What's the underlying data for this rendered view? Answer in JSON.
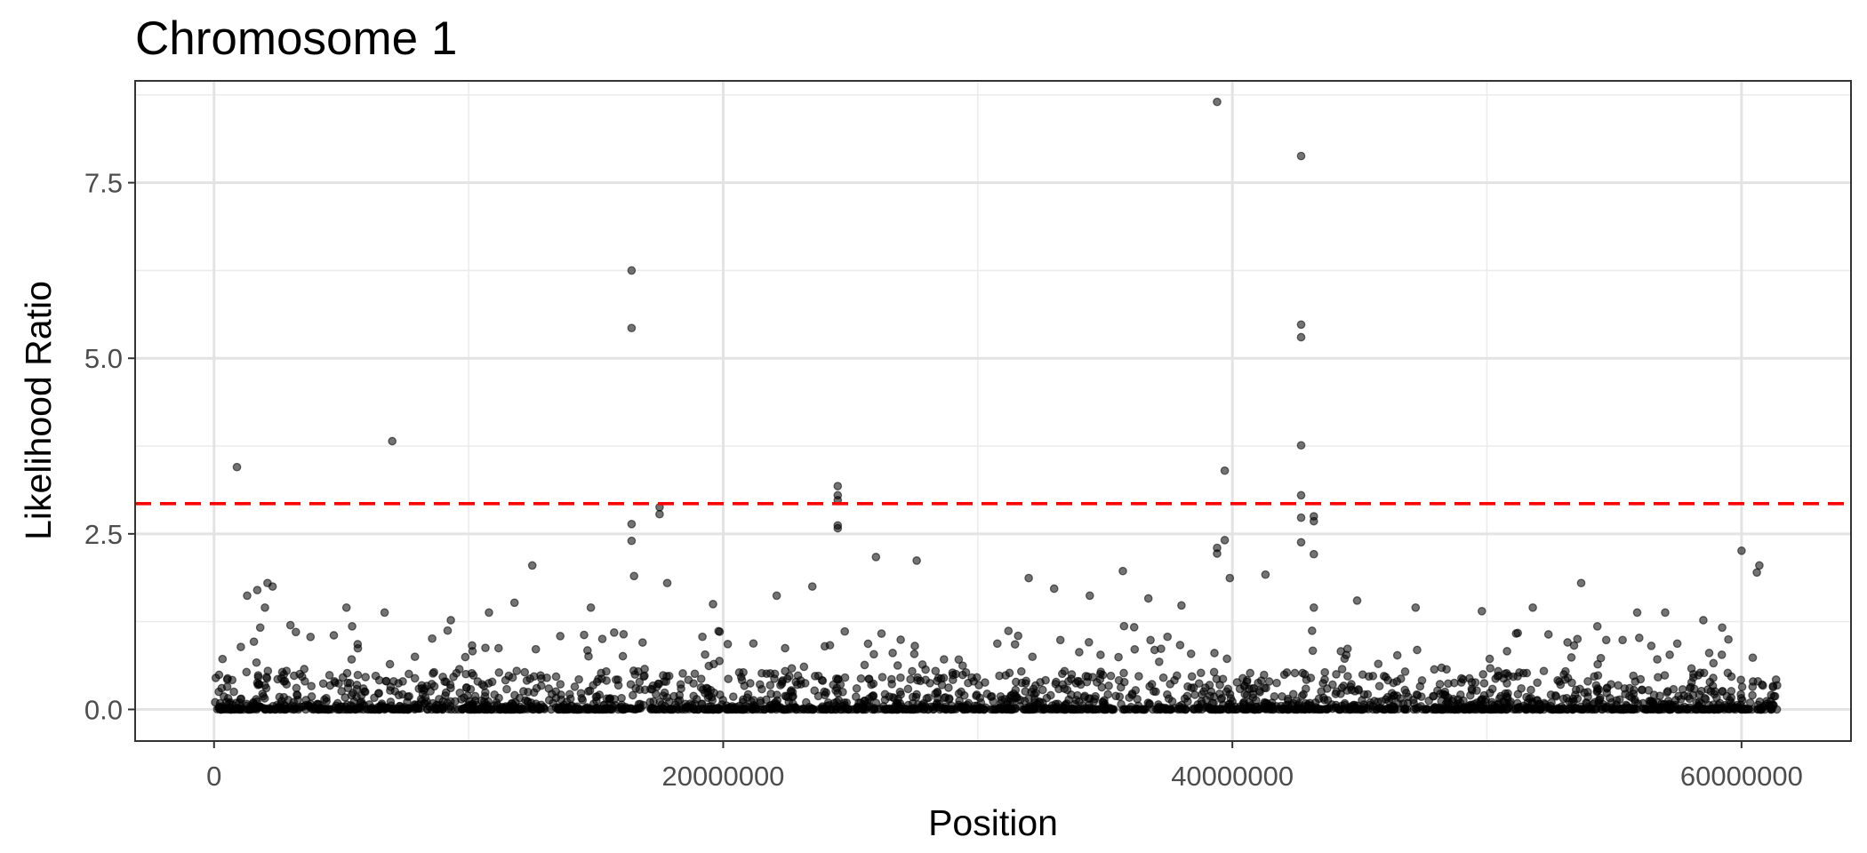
{
  "chart_data": {
    "type": "scatter",
    "title": "Chromosome 1",
    "xlabel": "Position",
    "ylabel": "Likelihood Ratio",
    "xlim": [
      -3100000,
      64300000
    ],
    "ylim": [
      -0.45,
      8.95
    ],
    "x_ticks": [
      0,
      20000000,
      40000000,
      60000000
    ],
    "x_tick_labels": [
      "0",
      "20000000",
      "40000000",
      "60000000"
    ],
    "y_ticks": [
      0,
      2.5,
      5,
      7.5
    ],
    "y_tick_labels": [
      "0.0",
      "2.5",
      "5.0",
      "7.5"
    ],
    "grid": true,
    "legend": "none",
    "threshold": {
      "y": 2.93,
      "color": "#ff0000",
      "style": "dashed"
    },
    "point_color": "#000000",
    "point_alpha": 0.55,
    "series": [
      {
        "points": [
          [
            900000,
            3.45
          ],
          [
            7000000,
            3.82
          ],
          [
            16400000,
            6.25
          ],
          [
            16400000,
            5.43
          ],
          [
            16400000,
            2.64
          ],
          [
            16400000,
            2.4
          ],
          [
            16500000,
            1.9
          ],
          [
            17500000,
            2.88
          ],
          [
            17500000,
            2.78
          ],
          [
            24500000,
            3.18
          ],
          [
            24500000,
            3.05
          ],
          [
            24500000,
            2.98
          ],
          [
            24500000,
            2.62
          ],
          [
            24500000,
            2.58
          ],
          [
            26000000,
            2.17
          ],
          [
            27600000,
            2.12
          ],
          [
            39400000,
            8.65
          ],
          [
            39700000,
            3.4
          ],
          [
            39700000,
            2.41
          ],
          [
            39400000,
            2.3
          ],
          [
            39400000,
            2.22
          ],
          [
            39900000,
            1.87
          ],
          [
            42700000,
            7.88
          ],
          [
            42700000,
            5.48
          ],
          [
            42700000,
            5.3
          ],
          [
            42700000,
            3.76
          ],
          [
            42700000,
            3.05
          ],
          [
            42700000,
            2.73
          ],
          [
            43200000,
            2.75
          ],
          [
            43200000,
            2.68
          ],
          [
            42700000,
            2.38
          ],
          [
            43200000,
            2.21
          ],
          [
            12500000,
            2.05
          ],
          [
            60000000,
            2.26
          ],
          [
            60700000,
            2.05
          ],
          [
            60600000,
            1.95
          ],
          [
            53700000,
            1.8
          ],
          [
            1300000,
            1.62
          ],
          [
            1700000,
            1.7
          ],
          [
            2100000,
            1.8
          ],
          [
            2300000,
            1.75
          ],
          [
            2000000,
            1.45
          ],
          [
            5200000,
            1.45
          ],
          [
            11800000,
            1.52
          ],
          [
            14800000,
            1.45
          ],
          [
            19600000,
            1.5
          ],
          [
            22100000,
            1.62
          ],
          [
            23500000,
            1.75
          ],
          [
            32000000,
            1.87
          ],
          [
            33000000,
            1.72
          ],
          [
            34400000,
            1.62
          ],
          [
            35700000,
            1.97
          ],
          [
            36700000,
            1.58
          ],
          [
            38000000,
            1.48
          ],
          [
            41300000,
            1.92
          ],
          [
            43200000,
            1.45
          ],
          [
            44900000,
            1.55
          ],
          [
            47200000,
            1.45
          ],
          [
            49800000,
            1.4
          ],
          [
            51800000,
            1.45
          ],
          [
            55900000,
            1.38
          ],
          [
            57000000,
            1.38
          ],
          [
            58500000,
            1.27
          ],
          [
            17800000,
            1.8
          ],
          [
            10800000,
            1.38
          ],
          [
            9300000,
            1.27
          ],
          [
            6700000,
            1.38
          ],
          [
            3000000,
            1.2
          ]
        ]
      }
    ]
  }
}
